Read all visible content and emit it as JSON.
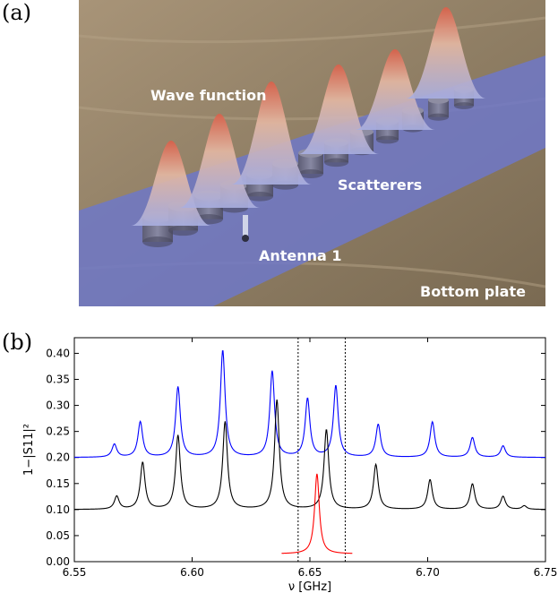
{
  "panel_a": {
    "label": "(a)",
    "annotations": {
      "wave_function": "Wave function",
      "scatterers": "Scatterers",
      "antenna": "Antenna 1",
      "bottom_plate": "Bottom plate"
    },
    "colors": {
      "plate": "#6f78c8",
      "wood": "#9b8b70",
      "peak_top": "#d9604a",
      "peak_base": "#a8aee0"
    }
  },
  "panel_b": {
    "label": "(b)"
  },
  "chart_data": {
    "type": "line",
    "xlabel": "ν [GHz]",
    "ylabel": "1−|S11|²",
    "xlim": [
      6.55,
      6.75
    ],
    "ylim": [
      0.0,
      0.43
    ],
    "xticks": [
      "6.55",
      "6.60",
      "6.65",
      "6.70",
      "6.75"
    ],
    "xtick_values": [
      6.55,
      6.6,
      6.65,
      6.7,
      6.75
    ],
    "yticks": [
      "0.00",
      "0.05",
      "0.10",
      "0.15",
      "0.20",
      "0.25",
      "0.30",
      "0.35",
      "0.40"
    ],
    "ytick_values": [
      0.0,
      0.05,
      0.1,
      0.15,
      0.2,
      0.25,
      0.3,
      0.35,
      0.4
    ],
    "vlines": [
      6.645,
      6.665
    ],
    "grid": false,
    "series": [
      {
        "color": "#0000ff",
        "baseline": 0.2,
        "x_range": [
          6.55,
          6.75
        ],
        "peaks": [
          {
            "x": 6.567,
            "y": 0.225
          },
          {
            "x": 6.578,
            "y": 0.268
          },
          {
            "x": 6.594,
            "y": 0.335
          },
          {
            "x": 6.613,
            "y": 0.405
          },
          {
            "x": 6.634,
            "y": 0.365
          },
          {
            "x": 6.649,
            "y": 0.312
          },
          {
            "x": 6.661,
            "y": 0.337
          },
          {
            "x": 6.679,
            "y": 0.263
          },
          {
            "x": 6.702,
            "y": 0.268
          },
          {
            "x": 6.719,
            "y": 0.238
          },
          {
            "x": 6.732,
            "y": 0.222
          }
        ]
      },
      {
        "color": "#000000",
        "baseline": 0.1,
        "x_range": [
          6.55,
          6.75
        ],
        "peaks": [
          {
            "x": 6.568,
            "y": 0.125
          },
          {
            "x": 6.579,
            "y": 0.19
          },
          {
            "x": 6.594,
            "y": 0.242
          },
          {
            "x": 6.614,
            "y": 0.268
          },
          {
            "x": 6.636,
            "y": 0.31
          },
          {
            "x": 6.657,
            "y": 0.253
          },
          {
            "x": 6.678,
            "y": 0.186
          },
          {
            "x": 6.701,
            "y": 0.157
          },
          {
            "x": 6.719,
            "y": 0.149
          },
          {
            "x": 6.732,
            "y": 0.125
          },
          {
            "x": 6.741,
            "y": 0.107
          }
        ]
      },
      {
        "color": "#ff0000",
        "baseline": 0.015,
        "x_range": [
          6.638,
          6.668
        ],
        "peaks": [
          {
            "x": 6.653,
            "y": 0.168
          }
        ]
      }
    ]
  }
}
